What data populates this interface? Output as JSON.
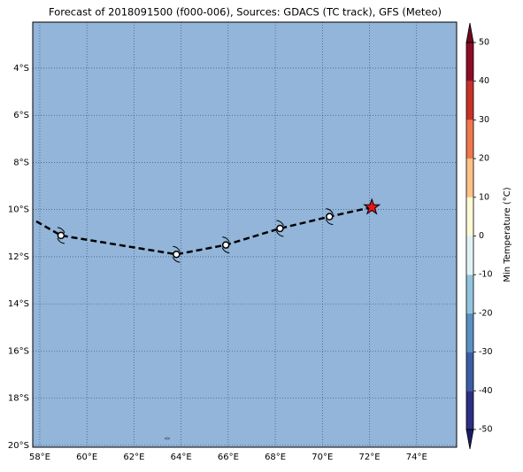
{
  "title": "Forecast of 2018091500 (f000-006), Sources: GDACS (TC track), GFS (Meteo)",
  "map": {
    "background": "#92b5d9",
    "xlim": [
      57.7,
      75.7
    ],
    "ylim": [
      -20.08,
      -2.05
    ],
    "xticks": [
      {
        "value": 58,
        "label": "58°E"
      },
      {
        "value": 60,
        "label": "60°E"
      },
      {
        "value": 62,
        "label": "62°E"
      },
      {
        "value": 64,
        "label": "64°E"
      },
      {
        "value": 66,
        "label": "66°E"
      },
      {
        "value": 68,
        "label": "68°E"
      },
      {
        "value": 70,
        "label": "70°E"
      },
      {
        "value": 72,
        "label": "72°E"
      },
      {
        "value": 74,
        "label": "74°E"
      }
    ],
    "yticks": [
      {
        "value": -4,
        "label": "4°S"
      },
      {
        "value": -6,
        "label": "6°S"
      },
      {
        "value": -8,
        "label": "8°S"
      },
      {
        "value": -10,
        "label": "10°S"
      },
      {
        "value": -12,
        "label": "12°S"
      },
      {
        "value": -14,
        "label": "14°S"
      },
      {
        "value": -16,
        "label": "16°S"
      },
      {
        "value": -18,
        "label": "18°S"
      },
      {
        "value": -20,
        "label": "20°S"
      }
    ],
    "track": {
      "lon": [
        57.85,
        58.9,
        63.8,
        65.9,
        68.2,
        70.3,
        72.1
      ],
      "lat": [
        -10.5,
        -11.1,
        -11.9,
        -11.5,
        -10.8,
        -10.3,
        -9.9
      ]
    },
    "storm_points": [
      1,
      2,
      3,
      4,
      5
    ],
    "current": 6
  },
  "colorbar": {
    "label": "Min Temperature (°C)",
    "lim": [
      -50,
      50
    ],
    "ticks": [
      -50,
      -40,
      -30,
      -20,
      -10,
      0,
      10,
      20,
      30,
      40,
      50
    ],
    "colors": [
      "#2c2f84",
      "#3a5ea6",
      "#5b8fc2",
      "#93c4de",
      "#e2f3f8",
      "#fef9d6",
      "#fdc285",
      "#f0774c",
      "#c93127",
      "#8e0c25"
    ],
    "under": "#1d1c6a",
    "over": "#6e0b1f"
  }
}
